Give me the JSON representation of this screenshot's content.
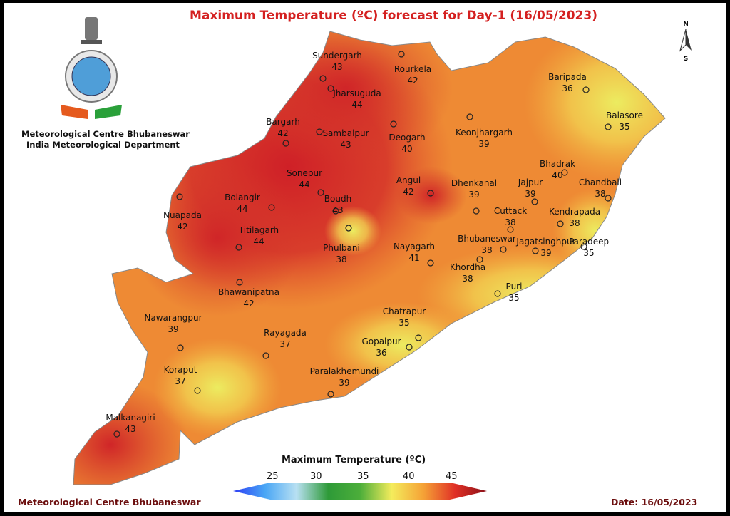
{
  "title": "Maximum Temperature (ºC) forecast for Day-1 (16/05/2023)",
  "header": {
    "org_line1": "Meteorological Centre Bhubaneswar",
    "org_line2": "India Meteorological Department",
    "logo": "India Meteorological Department emblem"
  },
  "north_arrow": {
    "n": "N",
    "s": "S"
  },
  "stations": [
    {
      "name": "Sundergarh",
      "temp": "43"
    },
    {
      "name": "Rourkela",
      "temp": "42"
    },
    {
      "name": "Jharsuguda",
      "temp": "44"
    },
    {
      "name": "Bargarh",
      "temp": "42"
    },
    {
      "name": "Sambalpur",
      "temp": "43"
    },
    {
      "name": "Deogarh",
      "temp": "40"
    },
    {
      "name": "Keonjhargarh",
      "temp": "39"
    },
    {
      "name": "Baripada",
      "temp": "36"
    },
    {
      "name": "Balasore",
      "temp": "35"
    },
    {
      "name": "Bhadrak",
      "temp": "40"
    },
    {
      "name": "Chandbali",
      "temp": "38"
    },
    {
      "name": "Jajpur",
      "temp": "39"
    },
    {
      "name": "Sonepur",
      "temp": "44"
    },
    {
      "name": "Bolangir",
      "temp": "44"
    },
    {
      "name": "Nuapada",
      "temp": "42"
    },
    {
      "name": "Boudh",
      "temp": "43"
    },
    {
      "name": "Angul",
      "temp": "42"
    },
    {
      "name": "Dhenkanal",
      "temp": "39"
    },
    {
      "name": "Cuttack",
      "temp": "38"
    },
    {
      "name": "Kendrapada",
      "temp": "38"
    },
    {
      "name": "Titilagarh",
      "temp": "44"
    },
    {
      "name": "Phulbani",
      "temp": "38"
    },
    {
      "name": "Nayagarh",
      "temp": "41"
    },
    {
      "name": "Bhubaneswar",
      "temp": "38"
    },
    {
      "name": "Khordha",
      "temp": "38"
    },
    {
      "name": "Jagatsinghpur",
      "temp": "39"
    },
    {
      "name": "Paradeep",
      "temp": "35"
    },
    {
      "name": "Bhawanipatna",
      "temp": "42"
    },
    {
      "name": "Puri",
      "temp": "35"
    },
    {
      "name": "Nawarangpur",
      "temp": "39"
    },
    {
      "name": "Chatrapur",
      "temp": "35"
    },
    {
      "name": "Rayagada",
      "temp": "37"
    },
    {
      "name": "Gopalpur",
      "temp": "36"
    },
    {
      "name": "Koraput",
      "temp": "37"
    },
    {
      "name": "Paralakhemundi",
      "temp": "39"
    },
    {
      "name": "Malkanagiri",
      "temp": "43"
    }
  ],
  "legend": {
    "title": "Maximum Temperature (ºC)",
    "ticks": [
      "25",
      "30",
      "35",
      "40",
      "45"
    ],
    "colors": [
      "#2b3cf5",
      "#49a6f5",
      "#b8e0f2",
      "#2e9a38",
      "#4cae3a",
      "#f4ec5c",
      "#f5a236",
      "#e03026",
      "#8a1018"
    ]
  },
  "footer": {
    "left": "Meteorological Centre Bhubaneswar",
    "date": "Date: 16/05/2023"
  }
}
